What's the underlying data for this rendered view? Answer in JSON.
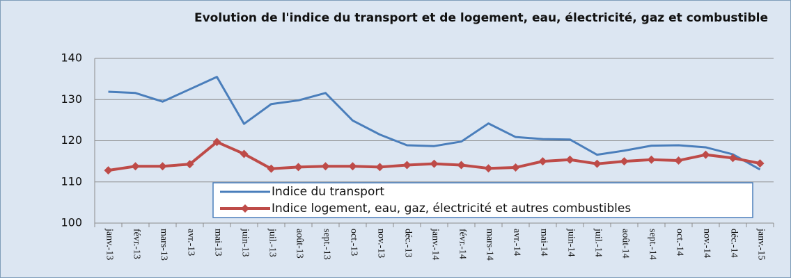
{
  "chart_data": {
    "type": "line",
    "title": "Evolution de l'indice du transport et de logement, eau, électricité, gaz et combustible",
    "categories": [
      "janv.-13",
      "févr.-13",
      "mars-13",
      "avr.-13",
      "mai-13",
      "juin-13",
      "juil.-13",
      "août-13",
      "sept.-13",
      "oct.-13",
      "nov.-13",
      "déc.-13",
      "janv.-14",
      "févr.-14",
      "mars-14",
      "avr.-14",
      "mai-14",
      "juin-14",
      "juil.-14",
      "août-14",
      "sept.-14",
      "oct.-14",
      "nov.-14",
      "déc.-14",
      "janv.-15"
    ],
    "series": [
      {
        "name": "Indice du transport",
        "color": "#4a7ebb",
        "marker": false,
        "values": [
          131.9,
          131.6,
          129.5,
          132.5,
          135.5,
          124.1,
          128.9,
          129.8,
          131.6,
          124.9,
          121.5,
          118.9,
          118.7,
          119.8,
          124.2,
          120.9,
          120.4,
          120.3,
          116.6,
          117.6,
          118.8,
          118.9,
          118.4,
          116.7,
          113.0
        ]
      },
      {
        "name": "Indice logement, eau, gaz, électricité et autres combustibles",
        "color": "#be4b48",
        "marker": true,
        "values": [
          112.8,
          113.8,
          113.8,
          114.3,
          119.7,
          116.8,
          113.2,
          113.6,
          113.8,
          113.8,
          113.6,
          114.1,
          114.4,
          114.1,
          113.3,
          113.5,
          115.0,
          115.4,
          114.4,
          115.0,
          115.4,
          115.2,
          116.6,
          115.8,
          114.5
        ]
      }
    ],
    "ylim": [
      100,
      140
    ],
    "yticks": [
      100,
      110,
      120,
      130,
      140
    ],
    "grid": true,
    "legend": "bottom-center"
  }
}
